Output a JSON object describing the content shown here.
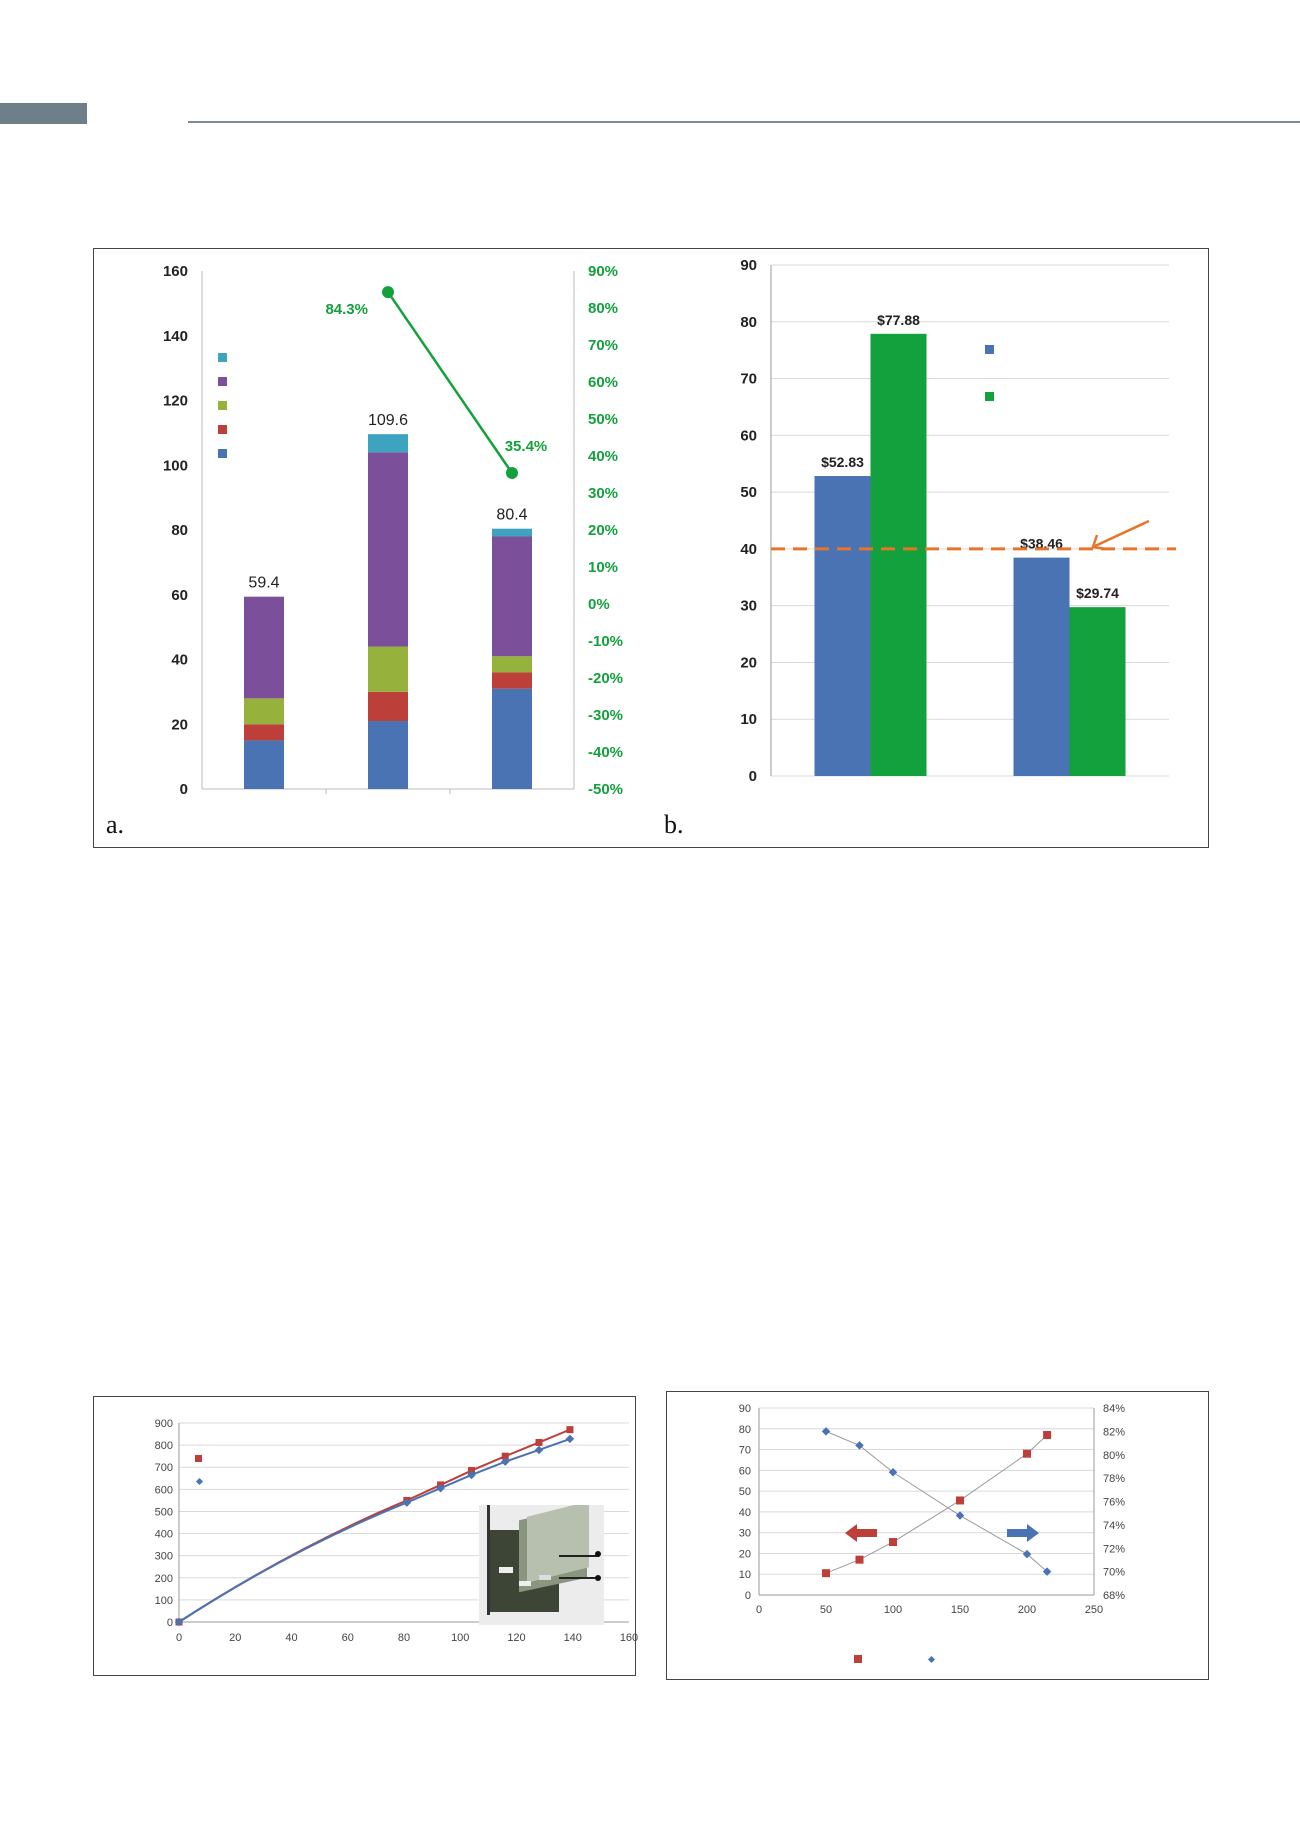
{
  "colors": {
    "header_tab": "#6e7f8a",
    "header_rule": "#7d8a93",
    "blue": "#4a73b4",
    "red": "#bd3f3a",
    "olive": "#97b23c",
    "purple": "#7c4f9b",
    "teal": "#3ea3bf",
    "green": "#13a13e",
    "orange": "#e8742a",
    "grid": "#d9d9d9"
  },
  "chart_data": [
    {
      "type": "bar",
      "panel_label": "a.",
      "stacked": true,
      "categories": [
        "",
        "",
        ""
      ],
      "series": [
        {
          "color": "blue",
          "values": [
            15,
            21,
            31
          ]
        },
        {
          "color": "red",
          "values": [
            5,
            9,
            5
          ]
        },
        {
          "color": "olive",
          "values": [
            8,
            14,
            5
          ]
        },
        {
          "color": "purple",
          "values": [
            31.4,
            60,
            37
          ]
        },
        {
          "color": "teal",
          "values": [
            0,
            5.6,
            2.4
          ]
        }
      ],
      "totals": [
        59.4,
        109.6,
        80.4
      ],
      "total_labels": [
        "59.4",
        "109.6",
        "80.4"
      ],
      "ylim": [
        0,
        160
      ],
      "y_ticks": [
        "0",
        "20",
        "40",
        "60",
        "80",
        "100",
        "120",
        "140",
        "160"
      ],
      "secondary_axis": {
        "ylim": [
          -50,
          90
        ],
        "ticks": [
          "-50%",
          "-40%",
          "-30%",
          "-20%",
          "-10%",
          "0%",
          "10%",
          "20%",
          "30%",
          "40%",
          "50%",
          "60%",
          "70%",
          "80%",
          "90%"
        ]
      },
      "line_series": {
        "color": "green",
        "points": [
          {
            "category_index": 1,
            "value": 84.3
          },
          {
            "category_index": 2,
            "value": 35.4
          }
        ],
        "labels": [
          "84.3%",
          "35.4%"
        ]
      },
      "legend": {
        "placement": "top-left",
        "colors": [
          "teal",
          "purple",
          "olive",
          "red",
          "blue"
        ]
      }
    },
    {
      "type": "bar",
      "panel_label": "b.",
      "categories": [
        "",
        ""
      ],
      "series": [
        {
          "color": "blue",
          "values": [
            52.83,
            38.46
          ]
        },
        {
          "color": "green",
          "values": [
            77.88,
            29.74
          ]
        }
      ],
      "value_labels": [
        [
          "$52.83",
          "$38.46"
        ],
        [
          "$77.88",
          "$29.74"
        ]
      ],
      "ylim": [
        0,
        90
      ],
      "y_ticks": [
        "0",
        "10",
        "20",
        "30",
        "40",
        "50",
        "60",
        "70",
        "80",
        "90"
      ],
      "reference_line": {
        "value": 40,
        "color": "orange",
        "style": "dashed"
      },
      "legend": {
        "placement": "top-center",
        "colors": [
          "blue",
          "green"
        ]
      }
    },
    {
      "type": "line",
      "xlim": [
        0,
        160
      ],
      "ylim": [
        0,
        900
      ],
      "x_ticks": [
        "0",
        "20",
        "40",
        "60",
        "80",
        "100",
        "120",
        "140",
        "160"
      ],
      "y_ticks": [
        "0",
        "100",
        "200",
        "300",
        "400",
        "500",
        "600",
        "700",
        "800",
        "900"
      ],
      "series": [
        {
          "color": "red",
          "marker": "square",
          "points": [
            [
              0,
              0
            ],
            [
              81,
              550
            ],
            [
              93,
              620
            ],
            [
              104,
              685
            ],
            [
              116,
              750
            ],
            [
              128,
              812
            ],
            [
              139,
              870
            ]
          ]
        },
        {
          "color": "blue",
          "marker": "diamond",
          "points": [
            [
              0,
              0
            ],
            [
              81,
              540
            ],
            [
              93,
              605
            ],
            [
              104,
              665
            ],
            [
              116,
              725
            ],
            [
              128,
              778
            ],
            [
              139,
              828
            ]
          ]
        }
      ],
      "legend": {
        "placement": "top-left",
        "colors": [
          "red",
          "blue"
        ]
      },
      "inset": "photograph of a flat-panel device"
    },
    {
      "type": "scatter",
      "xlim": [
        0,
        250
      ],
      "ylim": [
        0,
        90
      ],
      "x_ticks": [
        "0",
        "50",
        "100",
        "150",
        "200",
        "250"
      ],
      "y_ticks": [
        "0",
        "10",
        "20",
        "30",
        "40",
        "50",
        "60",
        "70",
        "80",
        "90"
      ],
      "secondary_axis": {
        "ylim": [
          68,
          84
        ],
        "ticks": [
          "68%",
          "70%",
          "72%",
          "74%",
          "76%",
          "78%",
          "80%",
          "82%",
          "84%"
        ]
      },
      "series": [
        {
          "color": "red",
          "marker": "square",
          "axis": "left",
          "points": [
            [
              50,
              10.5
            ],
            [
              75,
              17
            ],
            [
              100,
              25.5
            ],
            [
              150,
              45.5
            ],
            [
              200,
              68
            ],
            [
              215,
              77
            ]
          ]
        },
        {
          "color": "blue",
          "marker": "diamond",
          "axis": "right",
          "points": [
            [
              50,
              82
            ],
            [
              75,
              80.8
            ],
            [
              100,
              78.5
            ],
            [
              150,
              74.8
            ],
            [
              200,
              71.5
            ],
            [
              215,
              70
            ]
          ]
        }
      ],
      "arrows": [
        {
          "color": "red",
          "direction": "left"
        },
        {
          "color": "blue",
          "direction": "right"
        }
      ],
      "legend": {
        "placement": "bottom",
        "colors": [
          "red",
          "blue"
        ]
      }
    }
  ]
}
